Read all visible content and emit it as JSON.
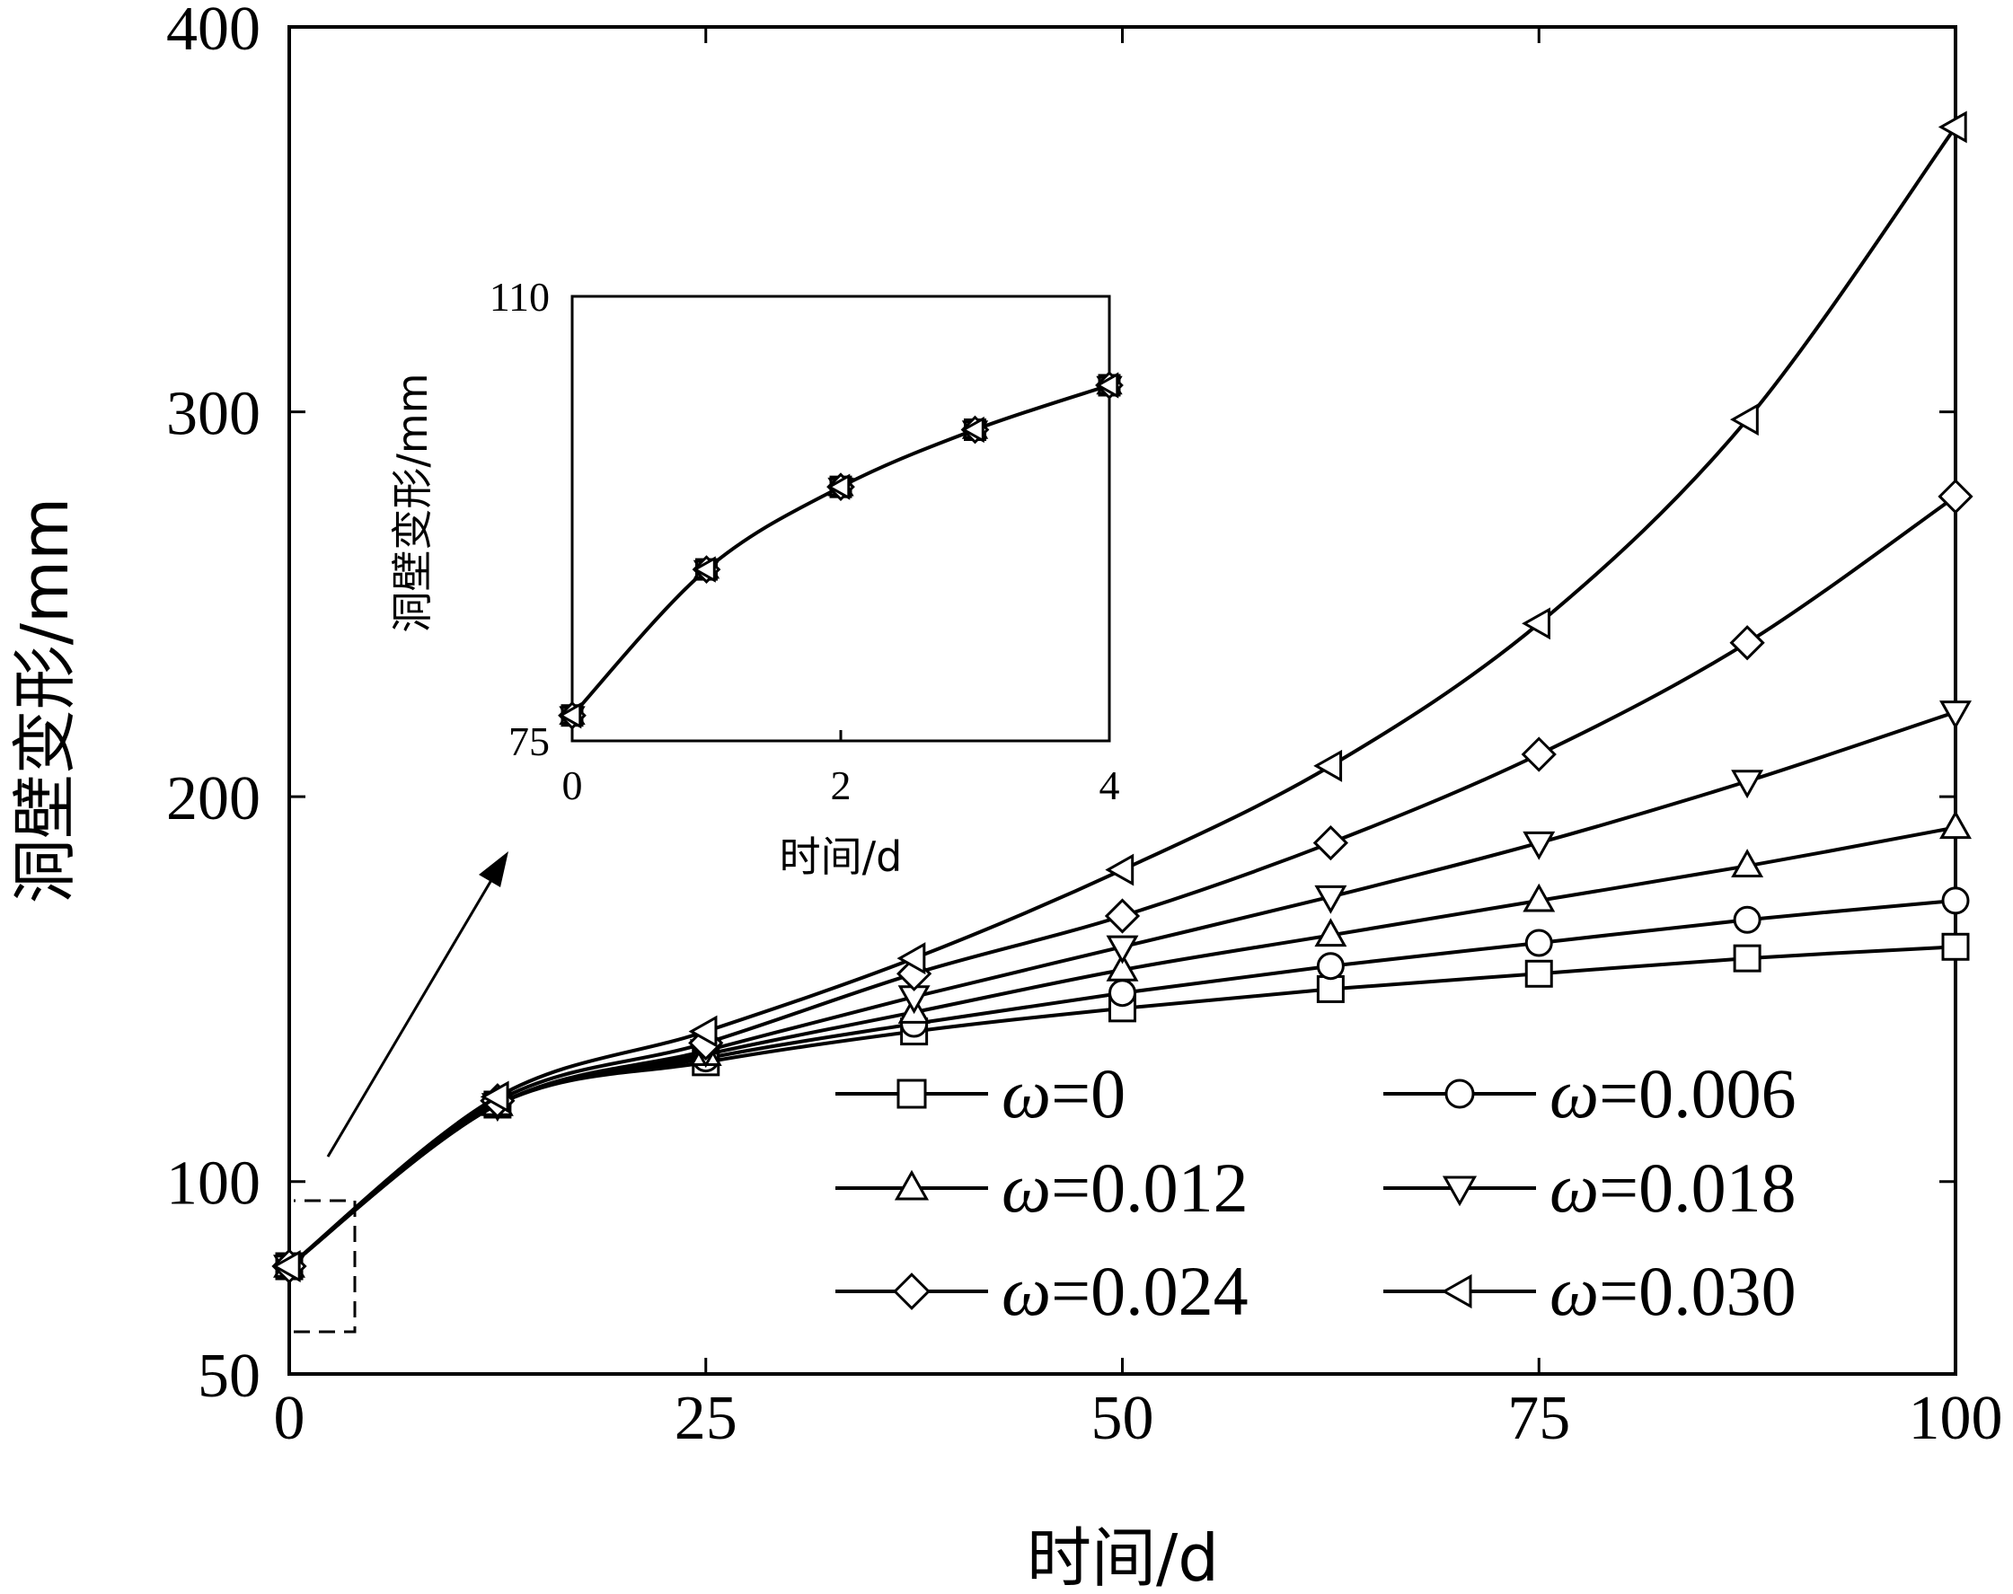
{
  "chart_data": {
    "type": "line",
    "xlabel": "时间/d",
    "ylabel": "洞壁变形/mm",
    "xlim": [
      0,
      100
    ],
    "ylim": [
      50,
      400
    ],
    "xticks": [
      0,
      25,
      50,
      75,
      100
    ],
    "yticks": [
      50,
      100,
      200,
      300,
      400
    ],
    "grid": false,
    "legend_position": "lower-right",
    "series": [
      {
        "name": "ω=0",
        "symbol": "ω",
        "value_label": "=0",
        "marker": "square",
        "x": [
          0,
          12.5,
          25,
          37.5,
          50,
          62.5,
          75,
          87.5,
          100
        ],
        "y": [
          78,
          120,
          131,
          139,
          145,
          150,
          154,
          158,
          161
        ]
      },
      {
        "name": "ω=0.006",
        "symbol": "ω",
        "value_label": "=0.006",
        "marker": "circle",
        "x": [
          0,
          12.5,
          25,
          37.5,
          50,
          62.5,
          75,
          87.5,
          100
        ],
        "y": [
          78,
          120,
          132,
          141,
          149,
          156,
          162,
          168,
          173
        ]
      },
      {
        "name": "ω=0.012",
        "symbol": "ω",
        "value_label": "=0.012",
        "marker": "triangle-up",
        "x": [
          0,
          12.5,
          25,
          37.5,
          50,
          62.5,
          75,
          87.5,
          100
        ],
        "y": [
          78,
          120,
          133,
          144,
          155,
          164,
          173,
          182,
          192
        ]
      },
      {
        "name": "ω=0.018",
        "symbol": "ω",
        "value_label": "=0.018",
        "marker": "triangle-down",
        "x": [
          0,
          12.5,
          25,
          37.5,
          50,
          62.5,
          75,
          87.5,
          100
        ],
        "y": [
          78,
          120,
          134,
          148,
          161,
          174,
          188,
          204,
          222
        ]
      },
      {
        "name": "ω=0.024",
        "symbol": "ω",
        "value_label": "=0.024",
        "marker": "diamond",
        "x": [
          0,
          12.5,
          25,
          37.5,
          50,
          62.5,
          75,
          87.5,
          100
        ],
        "y": [
          78,
          121,
          136,
          154,
          169,
          188,
          211,
          240,
          278
        ]
      },
      {
        "name": "ω=0.030",
        "symbol": "ω",
        "value_label": "=0.030",
        "marker": "triangle-left",
        "x": [
          0,
          12.5,
          25,
          37.5,
          50,
          62.5,
          75,
          87.5,
          100
        ],
        "y": [
          78,
          122,
          139,
          158,
          181,
          208,
          245,
          298,
          374
        ]
      }
    ],
    "inset": {
      "xlabel": "时间/d",
      "ylabel": "洞壁变形/mm",
      "xlim": [
        0,
        4
      ],
      "ylim": [
        75,
        110
      ],
      "xticks": [
        0,
        2,
        4
      ],
      "yticks": [
        75,
        110
      ],
      "x": [
        0,
        1,
        2,
        3,
        4
      ],
      "y": [
        77,
        88.5,
        95,
        99.5,
        103
      ]
    }
  }
}
